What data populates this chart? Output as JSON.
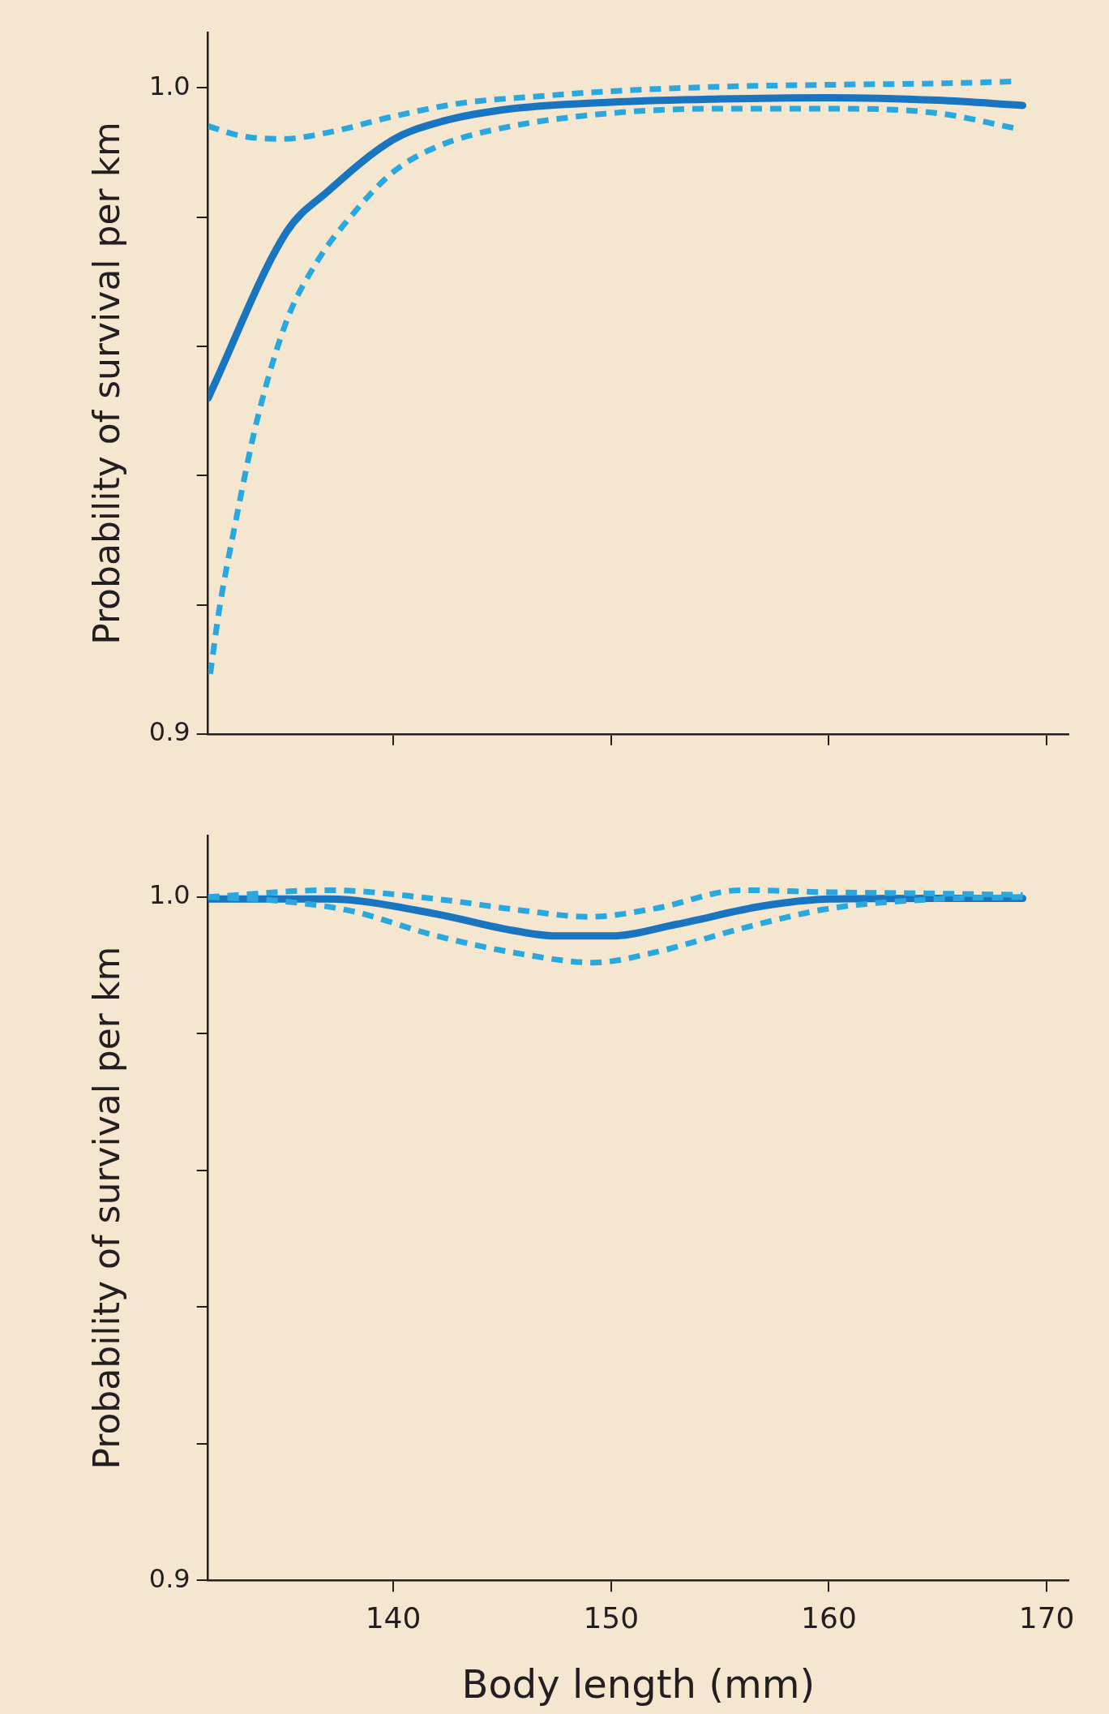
{
  "chart_data": [
    {
      "type": "line",
      "ylabel": "Probability of survival per km",
      "xlim": [
        131.5,
        171
      ],
      "xticks": [
        {
          "value": 140,
          "label": null
        },
        {
          "value": 150,
          "label": null
        },
        {
          "value": 160,
          "label": null
        },
        {
          "value": 170,
          "label": null
        }
      ],
      "ylim": [
        0.9,
        1.0086
      ],
      "yticks": [
        {
          "value": 0.9,
          "label": "0.9"
        },
        {
          "value": 0.92,
          "label": null
        },
        {
          "value": 0.94,
          "label": null
        },
        {
          "value": 0.96,
          "label": null
        },
        {
          "value": 0.98,
          "label": null
        },
        {
          "value": 1.0,
          "label": "1.0"
        }
      ],
      "tick_labels": "y",
      "grid": false,
      "legend": false,
      "series": [
        {
          "color": "#29a8e0",
          "line_style": "dashed",
          "x": [
            131.5,
            133,
            134.9,
            137,
            140,
            143,
            147,
            150,
            155,
            160,
            165,
            168.5
          ],
          "values": [
            0.9941,
            0.9926,
            0.9921,
            0.9931,
            0.9956,
            0.9976,
            0.9988,
            0.9995,
            1.0002,
            1.0005,
            1.0007,
            1.001
          ]
        },
        {
          "color": "#29a8e0",
          "line_style": "dashed",
          "x": [
            131.6,
            132,
            132.75,
            133.75,
            135.1,
            136.5,
            138,
            140,
            142,
            145,
            150,
            155,
            160,
            165,
            168.5
          ],
          "values": [
            0.9093,
            0.919,
            0.9326,
            0.9486,
            0.9639,
            0.9731,
            0.9799,
            0.987,
            0.9909,
            0.9938,
            0.9961,
            0.9968,
            0.9968,
            0.9961,
            0.9938
          ]
        },
        {
          "color": "#1a75c0",
          "line_style": "solid",
          "x": [
            131.5,
            135.1,
            137,
            140,
            142,
            145,
            150,
            155,
            160,
            165,
            168.9
          ],
          "values": [
            0.952,
            0.9777,
            0.984,
            0.992,
            0.9946,
            0.9966,
            0.9978,
            0.9983,
            0.9985,
            0.9981,
            0.9973
          ]
        }
      ]
    },
    {
      "type": "line",
      "xlabel": "Body length (mm)",
      "ylabel": "Probability of survival per km",
      "xlim": [
        131.5,
        171
      ],
      "xticks": [
        140,
        150,
        160,
        170
      ],
      "ylim": [
        0.9,
        1.009
      ],
      "yticks": [
        {
          "value": 0.9,
          "label": "0.9"
        },
        {
          "value": 0.92,
          "label": null
        },
        {
          "value": 0.94,
          "label": null
        },
        {
          "value": 0.96,
          "label": null
        },
        {
          "value": 0.98,
          "label": null
        },
        {
          "value": 1.0,
          "label": "1.0"
        }
      ],
      "grid": false,
      "legend": false,
      "series": [
        {
          "color": "#29a8e0",
          "line_style": "dashed",
          "x": [
            131.5,
            137,
            142,
            146,
            149,
            152,
            156,
            160,
            165,
            168.9
          ],
          "values": [
            1.0,
            1.001,
            0.9997,
            0.998,
            0.9971,
            0.9983,
            1.001,
            1.0007,
            1.0005,
            1.0003
          ]
        },
        {
          "color": "#29a8e0",
          "line_style": "dashed",
          "x": [
            131.5,
            134.5,
            138,
            142,
            146,
            149.2,
            152,
            156,
            160,
            165,
            168.9
          ],
          "values": [
            1.0,
            0.9995,
            0.998,
            0.9943,
            0.9916,
            0.9904,
            0.9919,
            0.9954,
            0.9983,
            0.9997,
            1.0
          ]
        },
        {
          "color": "#1a75c0",
          "line_style": "solid",
          "x": [
            131.5,
            137,
            142,
            145,
            147.5,
            150,
            153,
            157,
            160,
            165,
            168.9
          ],
          "values": [
            0.9997,
            0.9997,
            0.9975,
            0.9954,
            0.9943,
            0.9943,
            0.996,
            0.9987,
            0.9997,
            0.9998,
            0.9998
          ]
        }
      ]
    }
  ]
}
